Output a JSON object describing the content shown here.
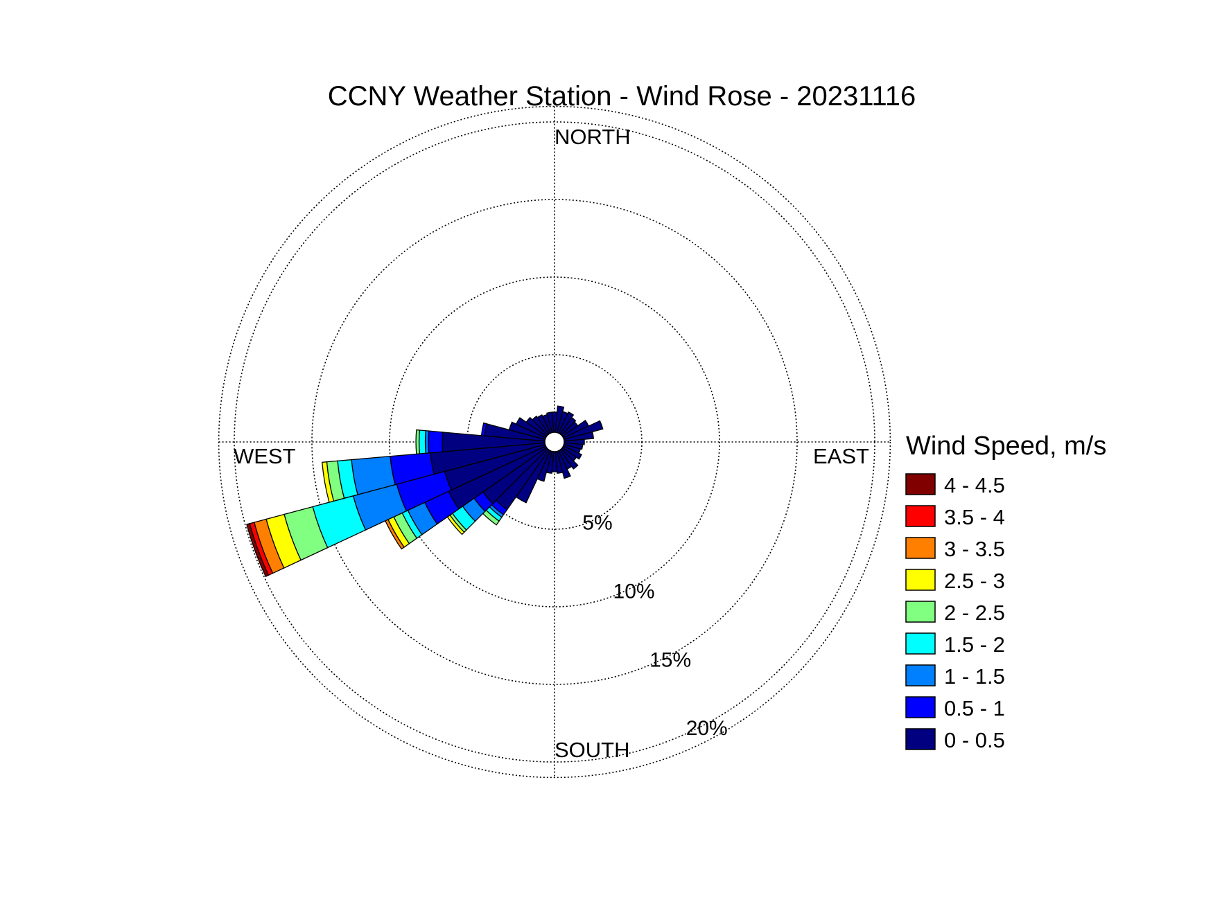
{
  "chart_data": {
    "type": "wind-rose",
    "title": "CCNY Weather Station - Wind Rose - 20231116",
    "directions": {
      "north": "NORTH",
      "south": "SOUTH",
      "east": "EAST",
      "west": "WEST"
    },
    "rings": [
      {
        "value": 5,
        "label": "5%"
      },
      {
        "value": 10,
        "label": "10%"
      },
      {
        "value": 15,
        "label": "15%"
      },
      {
        "value": 20,
        "label": "20%"
      }
    ],
    "rmax": 21,
    "grid": true,
    "legend": {
      "title": "Wind Speed, m/s",
      "position": "right",
      "bins": [
        {
          "label": "0 - 0.5",
          "color": "#000080"
        },
        {
          "label": "0.5 - 1",
          "color": "#0000ff"
        },
        {
          "label": "1 - 1.5",
          "color": "#0080ff"
        },
        {
          "label": "1.5 - 2",
          "color": "#00ffff"
        },
        {
          "label": "2 - 2.5",
          "color": "#80ff80"
        },
        {
          "label": "2.5 - 3",
          "color": "#ffff00"
        },
        {
          "label": "3 - 3.5",
          "color": "#ff8000"
        },
        {
          "label": "3.5 - 4",
          "color": "#ff0000"
        },
        {
          "label": "4 - 4.5",
          "color": "#800000"
        }
      ]
    },
    "sector_width_deg": 10,
    "sectors": [
      {
        "direction_deg": 0,
        "cum": [
          1.3
        ]
      },
      {
        "direction_deg": 10,
        "cum": [
          1.7
        ]
      },
      {
        "direction_deg": 20,
        "cum": [
          1.4
        ]
      },
      {
        "direction_deg": 30,
        "cum": [
          1.5
        ]
      },
      {
        "direction_deg": 40,
        "cum": [
          1.3
        ]
      },
      {
        "direction_deg": 50,
        "cum": [
          1.2
        ]
      },
      {
        "direction_deg": 60,
        "cum": [
          1.8
        ]
      },
      {
        "direction_deg": 70,
        "cum": [
          2.6
        ]
      },
      {
        "direction_deg": 80,
        "cum": [
          1.9
        ]
      },
      {
        "direction_deg": 90,
        "cum": [
          1.3
        ]
      },
      {
        "direction_deg": 100,
        "cum": [
          1.2
        ]
      },
      {
        "direction_deg": 110,
        "cum": [
          1.1
        ]
      },
      {
        "direction_deg": 120,
        "cum": [
          1.3
        ]
      },
      {
        "direction_deg": 130,
        "cum": [
          1.1
        ]
      },
      {
        "direction_deg": 140,
        "cum": [
          1.5
        ]
      },
      {
        "direction_deg": 150,
        "cum": [
          1.3
        ]
      },
      {
        "direction_deg": 160,
        "cum": [
          1.8
        ]
      },
      {
        "direction_deg": 170,
        "cum": [
          1.4
        ]
      },
      {
        "direction_deg": 180,
        "cum": [
          1.3
        ]
      },
      {
        "direction_deg": 190,
        "cum": [
          1.4
        ]
      },
      {
        "direction_deg": 200,
        "cum": [
          2.0
        ]
      },
      {
        "direction_deg": 210,
        "cum": [
          3.7
        ]
      },
      {
        "direction_deg": 220,
        "cum": [
          4.7,
          5.1,
          5.3,
          5.6,
          5.9
        ]
      },
      {
        "direction_deg": 230,
        "cum": [
          5.0,
          5.7,
          6.6,
          7.4,
          7.6,
          7.8
        ]
      },
      {
        "direction_deg": 240,
        "cum": [
          6.9,
          8.6,
          9.8,
          10.2,
          10.8,
          11.2,
          11.4
        ]
      },
      {
        "direction_deg": 250,
        "cum": [
          6.7,
          9.9,
          12.8,
          15.5,
          17.4,
          18.6,
          19.4,
          19.7,
          19.9
        ]
      },
      {
        "direction_deg": 260,
        "cum": [
          7.4,
          10.0,
          12.5,
          13.4,
          14.1,
          14.4
        ]
      },
      {
        "direction_deg": 270,
        "cum": [
          6.6,
          7.5,
          7.7,
          8.1,
          8.3
        ]
      },
      {
        "direction_deg": 280,
        "cum": [
          3.9,
          4.1
        ]
      },
      {
        "direction_deg": 290,
        "cum": [
          2.4
        ]
      },
      {
        "direction_deg": 300,
        "cum": [
          2.1
        ]
      },
      {
        "direction_deg": 310,
        "cum": [
          1.6
        ]
      },
      {
        "direction_deg": 320,
        "cum": [
          1.4
        ]
      },
      {
        "direction_deg": 330,
        "cum": [
          1.3
        ]
      },
      {
        "direction_deg": 340,
        "cum": [
          1.2
        ]
      },
      {
        "direction_deg": 350,
        "cum": [
          1.3
        ]
      }
    ]
  }
}
